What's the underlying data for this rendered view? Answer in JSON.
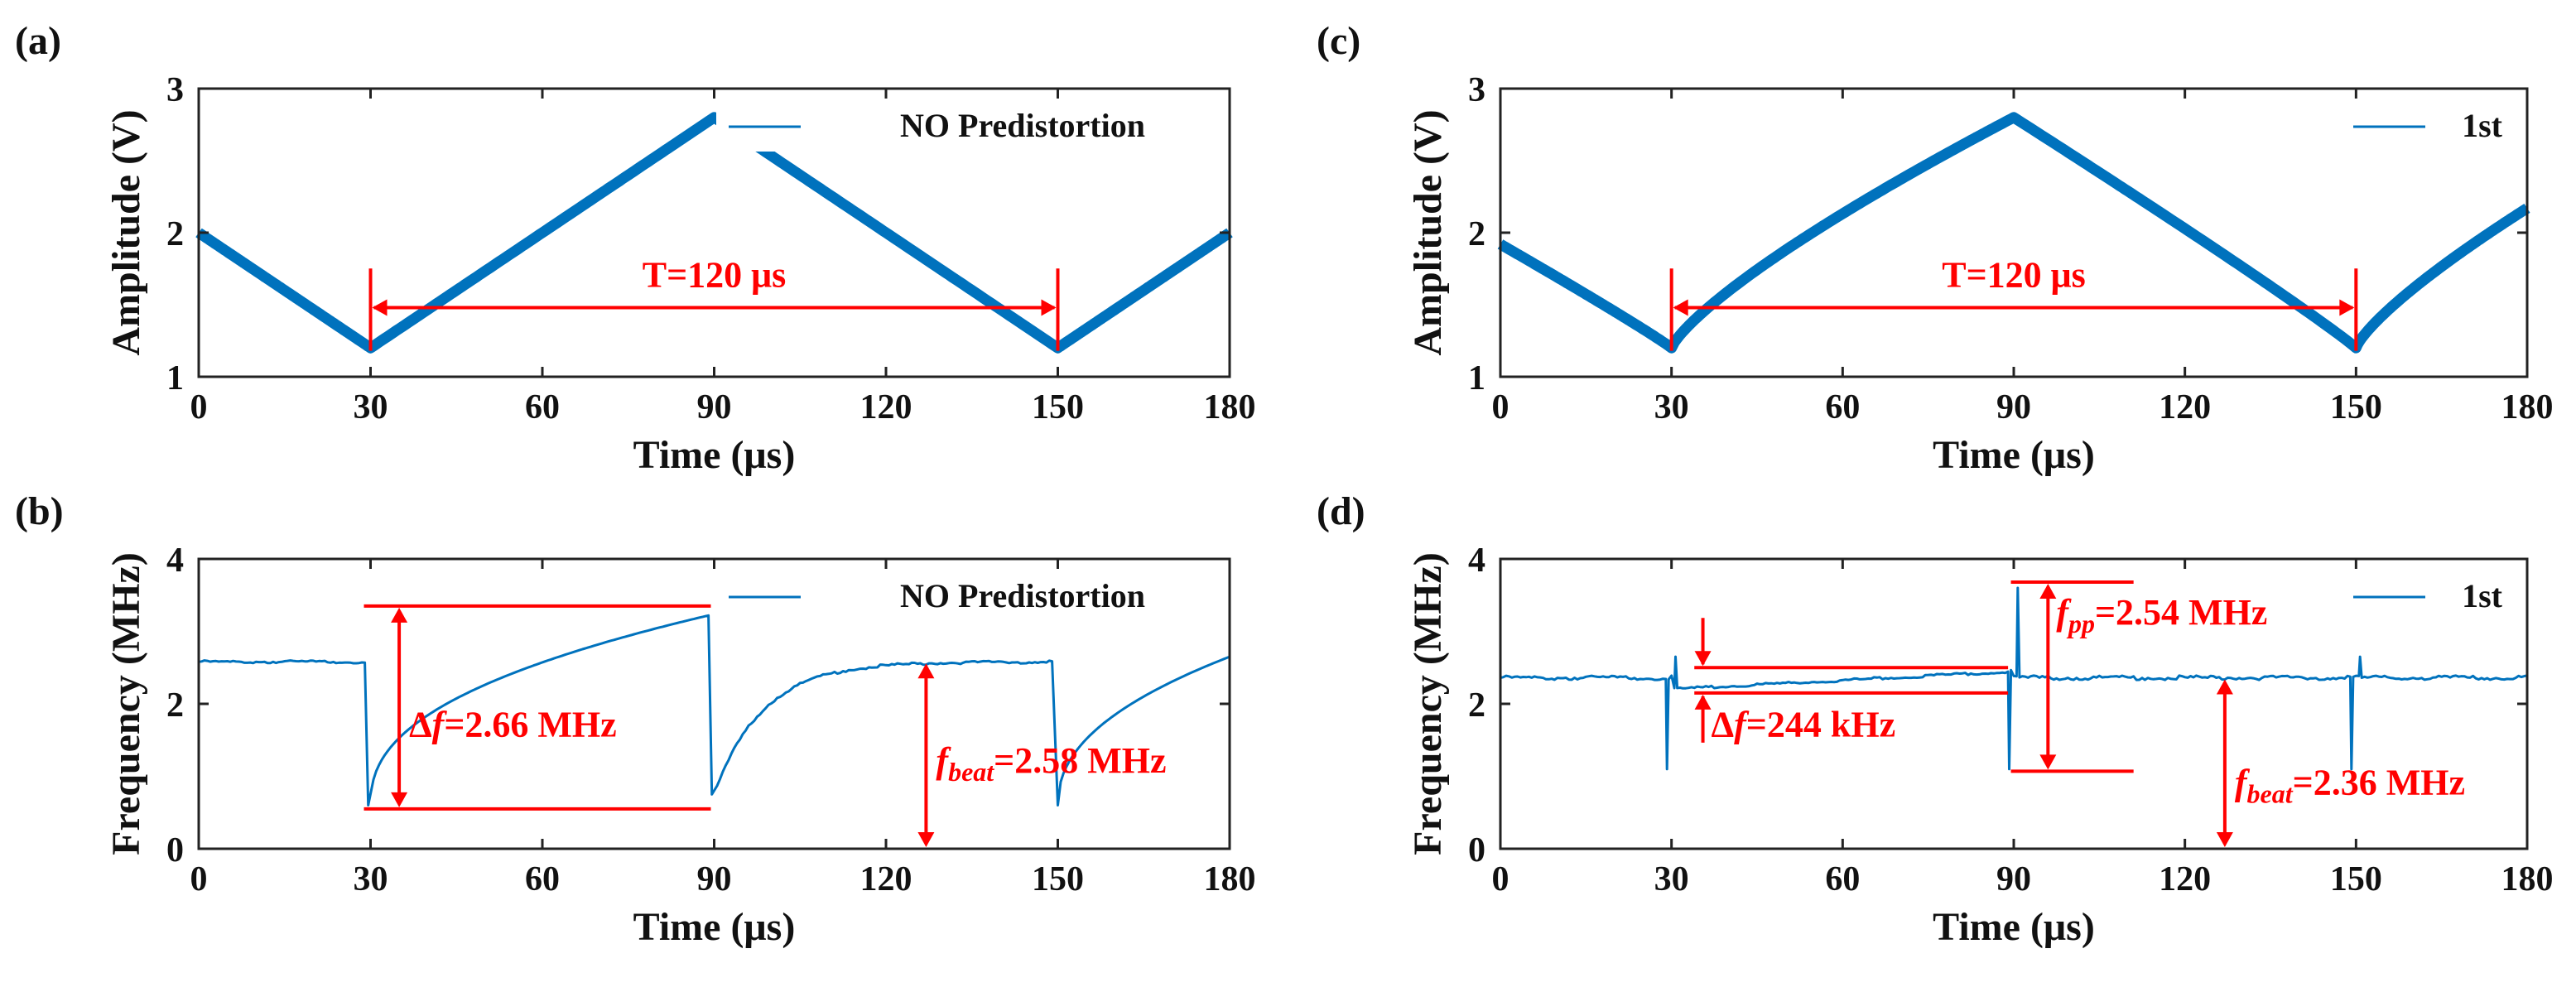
{
  "chart_data": [
    {
      "panel_label": "(a)",
      "type": "line",
      "xlabel": "Time (μs)",
      "ylabel": "Amplitude (V)",
      "xlim": [
        0,
        180
      ],
      "ylim": [
        1,
        3
      ],
      "xticks": [
        0,
        30,
        60,
        90,
        120,
        150,
        180
      ],
      "yticks": [
        1,
        2,
        3
      ],
      "legend": {
        "position": "top-right",
        "entry": "NO Predistortion"
      },
      "series": [
        {
          "name": "NO Predistortion",
          "shape": "triangle",
          "x": [
            0,
            30,
            90,
            150,
            180
          ],
          "y": [
            2.0,
            1.2,
            2.8,
            1.2,
            2.0
          ]
        }
      ],
      "annotations": [
        {
          "type": "period-arrow",
          "x_from": 30,
          "x_to": 150,
          "y": 1.48,
          "text": "T=120 μs"
        }
      ]
    },
    {
      "panel_label": "(b)",
      "type": "line",
      "xlabel": "Time (μs)",
      "ylabel": "Frequency (MHz)",
      "xlim": [
        0,
        180
      ],
      "ylim": [
        0,
        4
      ],
      "xticks": [
        0,
        30,
        60,
        90,
        120,
        150,
        180
      ],
      "yticks": [
        0,
        2,
        4
      ],
      "legend": {
        "position": "top-right",
        "entry": "NO Predistortion"
      },
      "series": [
        {
          "name": "NO Predistortion",
          "shape": "recovery",
          "baseline": 2.58,
          "dips": [
            {
              "x": 30,
              "min": 0.6,
              "end": 3.22,
              "end_x": 89
            },
            {
              "x": 150,
              "min": 0.6,
              "end": 2.65,
              "end_x": 180
            }
          ],
          "spike_dip": {
            "x": 89,
            "min": 0.75
          }
        }
      ],
      "annotations": [
        {
          "type": "range",
          "label_main": "Δ",
          "label_it": "f",
          "label_rest": "=2.66 MHz",
          "y_top": 3.35,
          "y_bottom": 0.55
        },
        {
          "type": "level",
          "label_it": "f",
          "label_sub": "beat",
          "label_rest": "=2.58 MHz",
          "y_level": 2.58
        }
      ]
    },
    {
      "panel_label": "(c)",
      "type": "line",
      "xlabel": "Time (μs)",
      "ylabel": "Amplitude (V)",
      "xlim": [
        0,
        180
      ],
      "ylim": [
        1,
        3
      ],
      "xticks": [
        0,
        30,
        60,
        90,
        120,
        150,
        180
      ],
      "yticks": [
        1,
        2,
        3
      ],
      "legend": {
        "position": "top-right",
        "entry": "1st"
      },
      "series": [
        {
          "name": "1st",
          "shape": "curved-triangle",
          "x": [
            0,
            30,
            90,
            150,
            180
          ],
          "y": [
            1.92,
            1.2,
            2.8,
            1.2,
            2.17
          ]
        }
      ],
      "annotations": [
        {
          "type": "period-arrow",
          "x_from": 30,
          "x_to": 150,
          "y": 1.48,
          "text": "T=120 μs"
        }
      ]
    },
    {
      "panel_label": "(d)",
      "type": "line",
      "xlabel": "Time (μs)",
      "ylabel": "Frequency (MHz)",
      "xlim": [
        0,
        180
      ],
      "ylim": [
        0,
        4
      ],
      "xticks": [
        0,
        30,
        60,
        90,
        120,
        150,
        180
      ],
      "yticks": [
        0,
        2,
        4
      ],
      "legend": {
        "position": "top-right",
        "entry": "1st"
      },
      "series": [
        {
          "name": "1st",
          "shape": "flat-with-spikes",
          "baseline": 2.36,
          "spikes": [
            {
              "x": 30,
              "max": 2.65,
              "min": 1.1
            },
            {
              "x": 90,
              "max": 3.6,
              "min": 1.1
            },
            {
              "x": 150,
              "max": 2.65,
              "min": 1.1
            }
          ]
        }
      ],
      "annotations": [
        {
          "type": "range",
          "label_main": "Δ",
          "label_it": "f",
          "label_rest": "=244 kHz",
          "y_top": 2.5,
          "y_bottom": 2.15
        },
        {
          "type": "range",
          "label_it": "f",
          "label_sub": "pp",
          "label_rest": "=2.54 MHz",
          "y_top": 3.68,
          "y_bottom": 1.07
        },
        {
          "type": "level",
          "label_it": "f",
          "label_sub": "beat",
          "label_rest": "=2.36 MHz",
          "y_level": 2.36
        }
      ]
    }
  ]
}
